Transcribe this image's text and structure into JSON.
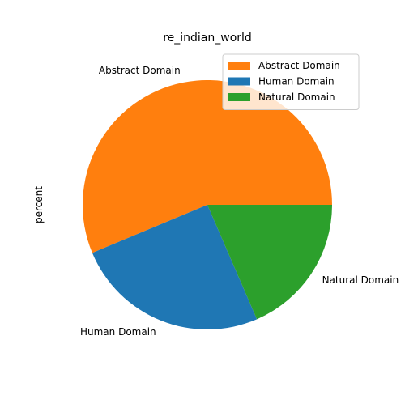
{
  "chart_data": {
    "type": "pie",
    "title": "re_indian_world",
    "ylabel": "percent",
    "start_angle_deg": 0,
    "direction": "counterclockwise",
    "slices": [
      {
        "label": "Abstract Domain",
        "value": 56.3,
        "color": "#ff7f0e"
      },
      {
        "label": "Human Domain",
        "value": 25.2,
        "color": "#1f77b4"
      },
      {
        "label": "Natural Domain",
        "value": 18.5,
        "color": "#2ca02c"
      }
    ],
    "legend": {
      "position": "top-right",
      "entries": [
        "Abstract Domain",
        "Human Domain",
        "Natural Domain"
      ]
    }
  }
}
